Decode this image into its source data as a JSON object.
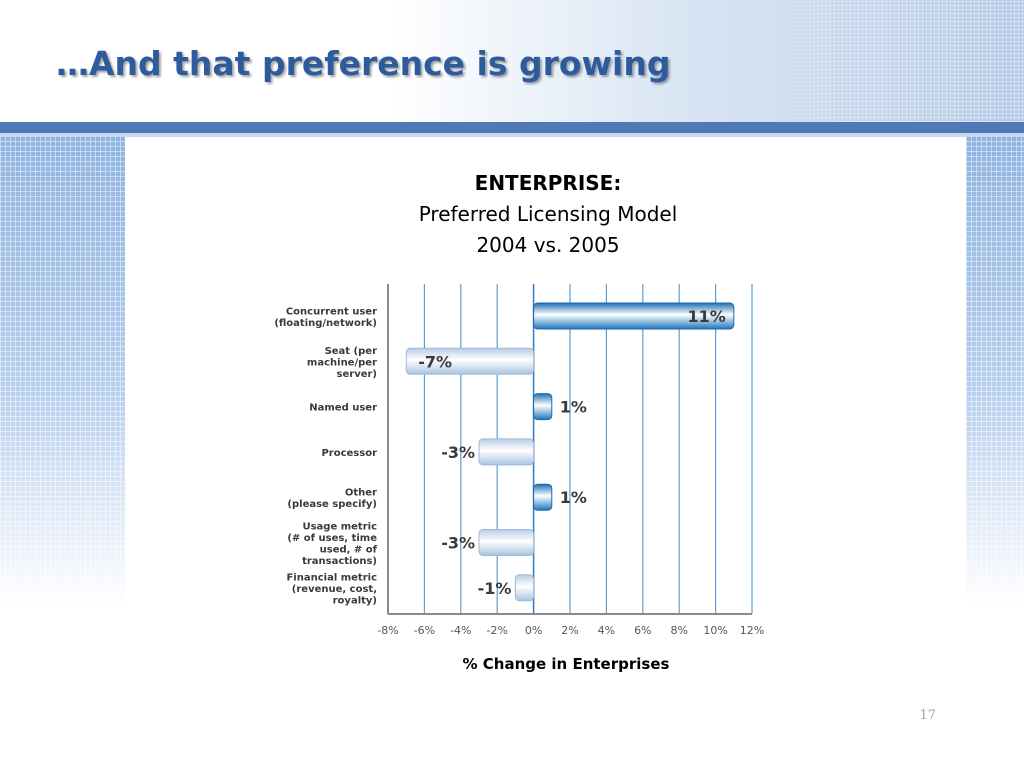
{
  "slide": {
    "title": "…And that preference is growing",
    "page_number": "17"
  },
  "chart_data": {
    "type": "bar",
    "orientation": "horizontal",
    "title_lines": [
      "ENTERPRISE:",
      "Preferred Licensing Model",
      "2004  vs. 2005"
    ],
    "xlabel": "% Change in Enterprises",
    "ylabel": "",
    "categories": [
      [
        "Concurrent user",
        "(floating/network)"
      ],
      [
        "Seat (per",
        "machine/per",
        "server)"
      ],
      [
        "Named user"
      ],
      [
        "Processor"
      ],
      [
        "Other",
        "(please specify)"
      ],
      [
        "Usage metric",
        "(# of uses, time",
        "used, # of",
        "transactions)"
      ],
      [
        "Financial metric",
        "(revenue, cost,",
        "royalty)"
      ]
    ],
    "values": [
      11,
      -7,
      1,
      -3,
      1,
      -3,
      -1
    ],
    "value_labels": [
      "11%",
      "-7%",
      "1%",
      "-3%",
      "1%",
      "-3%",
      "-1%"
    ],
    "xlim": [
      -8,
      12
    ],
    "xticks": [
      -8,
      -6,
      -4,
      -2,
      0,
      2,
      4,
      6,
      8,
      10,
      12
    ],
    "xtick_labels": [
      "-8%",
      "-6%",
      "-4%",
      "-2%",
      "0%",
      "2%",
      "4%",
      "6%",
      "8%",
      "10%",
      "12%"
    ],
    "grid": true,
    "colors": {
      "positive_bar": "#2a86c8",
      "negative_bar": "#c3d7ec",
      "gridline": "#5a9fd6",
      "label_text": "#3a3a3a"
    }
  }
}
